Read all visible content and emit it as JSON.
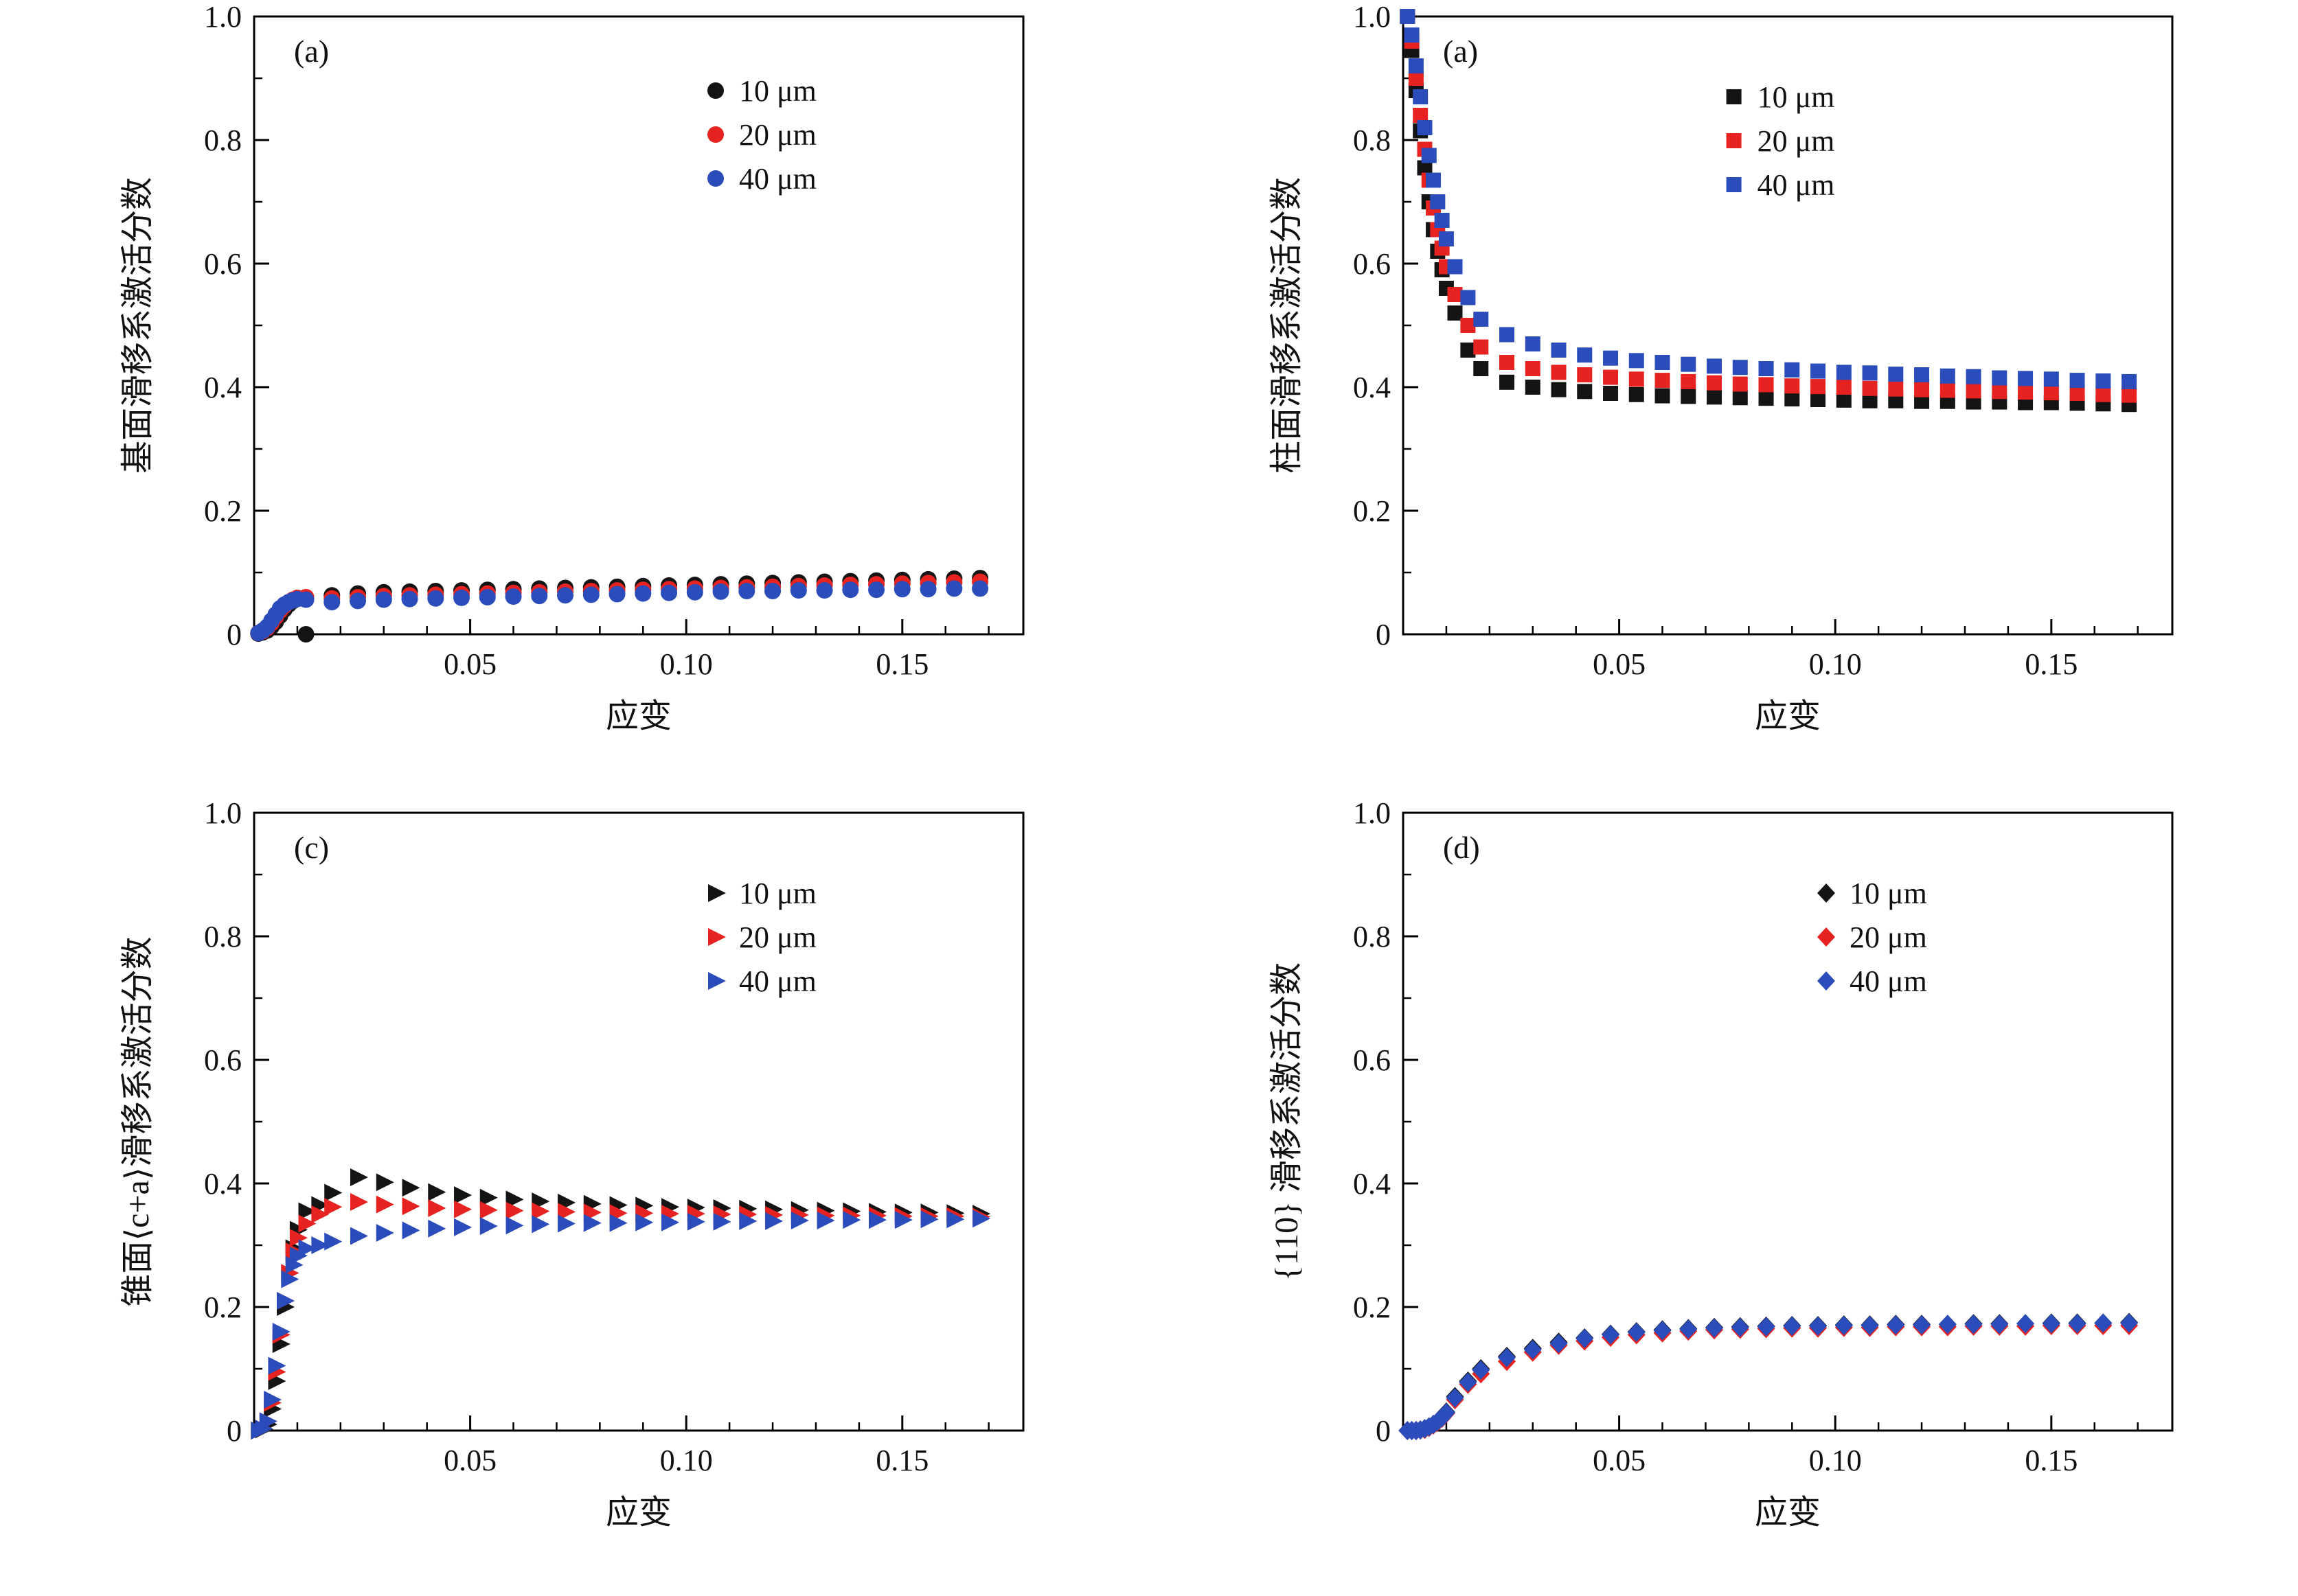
{
  "page": {
    "background": "#ffffff"
  },
  "chart_data": [
    {
      "type": "scatter",
      "panel_label": "(a)",
      "marker": "circle",
      "xlabel": "应变",
      "ylabel": "基面滑移系激活分数",
      "xlim": [
        0,
        0.178
      ],
      "ylim": [
        0,
        1.0
      ],
      "xticks": [
        0.05,
        0.1,
        0.15
      ],
      "xtick_labels": [
        "0.05",
        "0.10",
        "0.15"
      ],
      "yticks": [
        0,
        0.2,
        0.4,
        0.6,
        0.8,
        1.0
      ],
      "ytick_labels": [
        "0",
        "0.2",
        "0.4",
        "0.6",
        "0.8",
        "1.0"
      ],
      "xminor_step": 0.01,
      "yminor_step": 0.1,
      "grid": false,
      "legend_pos": [
        0.6,
        0.12
      ],
      "x": [
        0.001,
        0.002,
        0.003,
        0.004,
        0.005,
        0.006,
        0.007,
        0.008,
        0.009,
        0.01,
        0.012,
        0.018,
        0.024,
        0.03,
        0.036,
        0.042,
        0.048,
        0.054,
        0.06,
        0.066,
        0.072,
        0.078,
        0.084,
        0.09,
        0.096,
        0.102,
        0.108,
        0.114,
        0.12,
        0.126,
        0.132,
        0.138,
        0.144,
        0.15,
        0.156,
        0.162,
        0.168
      ],
      "series": [
        {
          "name": "10 μm",
          "color": "#141414",
          "values": [
            0.001,
            0.003,
            0.006,
            0.012,
            0.02,
            0.03,
            0.04,
            0.048,
            0.054,
            0.058,
            0.0,
            0.063,
            0.066,
            0.068,
            0.069,
            0.07,
            0.071,
            0.072,
            0.073,
            0.074,
            0.075,
            0.076,
            0.077,
            0.078,
            0.079,
            0.08,
            0.081,
            0.082,
            0.083,
            0.084,
            0.085,
            0.086,
            0.087,
            0.088,
            0.089,
            0.09,
            0.091
          ]
        },
        {
          "name": "20 μm",
          "color": "#e62320",
          "values": [
            0.002,
            0.005,
            0.01,
            0.018,
            0.028,
            0.038,
            0.046,
            0.052,
            0.056,
            0.059,
            0.06,
            0.058,
            0.06,
            0.062,
            0.063,
            0.064,
            0.065,
            0.066,
            0.067,
            0.068,
            0.069,
            0.07,
            0.071,
            0.072,
            0.073,
            0.074,
            0.075,
            0.076,
            0.077,
            0.078,
            0.079,
            0.08,
            0.081,
            0.082,
            0.083,
            0.084,
            0.085
          ]
        },
        {
          "name": "40 μm",
          "color": "#2b4cbb",
          "values": [
            0.002,
            0.006,
            0.012,
            0.022,
            0.032,
            0.042,
            0.048,
            0.052,
            0.055,
            0.057,
            0.056,
            0.052,
            0.054,
            0.056,
            0.057,
            0.058,
            0.059,
            0.06,
            0.061,
            0.062,
            0.063,
            0.064,
            0.065,
            0.066,
            0.067,
            0.068,
            0.069,
            0.07,
            0.07,
            0.071,
            0.071,
            0.072,
            0.072,
            0.073,
            0.073,
            0.074,
            0.074
          ]
        }
      ]
    },
    {
      "type": "scatter",
      "panel_label": "(a)",
      "marker": "square",
      "xlabel": "应变",
      "ylabel": "柱面滑移系激活分数",
      "xlim": [
        0,
        0.178
      ],
      "ylim": [
        0,
        1.0
      ],
      "xticks": [
        0.05,
        0.1,
        0.15
      ],
      "xtick_labels": [
        "0.05",
        "0.10",
        "0.15"
      ],
      "yticks": [
        0,
        0.2,
        0.4,
        0.6,
        0.8,
        1.0
      ],
      "ytick_labels": [
        "0",
        "0.2",
        "0.4",
        "0.6",
        "0.8",
        "1.0"
      ],
      "xminor_step": 0.01,
      "yminor_step": 0.1,
      "grid": false,
      "legend_pos": [
        0.43,
        0.13
      ],
      "x": [
        0.001,
        0.002,
        0.003,
        0.004,
        0.005,
        0.006,
        0.007,
        0.008,
        0.009,
        0.01,
        0.012,
        0.015,
        0.018,
        0.024,
        0.03,
        0.036,
        0.042,
        0.048,
        0.054,
        0.06,
        0.066,
        0.072,
        0.078,
        0.084,
        0.09,
        0.096,
        0.102,
        0.108,
        0.114,
        0.12,
        0.126,
        0.132,
        0.138,
        0.144,
        0.15,
        0.156,
        0.162,
        0.168
      ],
      "series": [
        {
          "name": "10 μm",
          "color": "#141414",
          "values": [
            1.0,
            0.945,
            0.88,
            0.815,
            0.755,
            0.7,
            0.655,
            0.62,
            0.59,
            0.56,
            0.52,
            0.46,
            0.43,
            0.408,
            0.4,
            0.396,
            0.393,
            0.39,
            0.388,
            0.386,
            0.385,
            0.384,
            0.383,
            0.382,
            0.381,
            0.38,
            0.379,
            0.378,
            0.378,
            0.377,
            0.377,
            0.376,
            0.376,
            0.375,
            0.375,
            0.374,
            0.373,
            0.372
          ]
        },
        {
          "name": "20 μm",
          "color": "#e62320",
          "values": [
            1.0,
            0.96,
            0.9,
            0.84,
            0.785,
            0.735,
            0.69,
            0.655,
            0.625,
            0.595,
            0.55,
            0.5,
            0.465,
            0.44,
            0.43,
            0.424,
            0.42,
            0.416,
            0.413,
            0.411,
            0.409,
            0.407,
            0.405,
            0.404,
            0.402,
            0.401,
            0.4,
            0.398,
            0.397,
            0.396,
            0.395,
            0.394,
            0.393,
            0.392,
            0.391,
            0.39,
            0.388,
            0.387
          ]
        },
        {
          "name": "40 μm",
          "color": "#2b4cbb",
          "values": [
            1.0,
            0.97,
            0.92,
            0.87,
            0.82,
            0.775,
            0.735,
            0.7,
            0.67,
            0.64,
            0.595,
            0.545,
            0.51,
            0.485,
            0.47,
            0.46,
            0.452,
            0.447,
            0.443,
            0.44,
            0.437,
            0.434,
            0.432,
            0.43,
            0.428,
            0.426,
            0.424,
            0.423,
            0.421,
            0.42,
            0.418,
            0.417,
            0.415,
            0.414,
            0.413,
            0.411,
            0.41,
            0.409
          ]
        }
      ]
    },
    {
      "type": "scatter",
      "panel_label": "(c)",
      "marker": "triangle-right",
      "xlabel": "应变",
      "ylabel": "锥面⟨c+a⟩滑移系激活分数",
      "xlim": [
        0,
        0.178
      ],
      "ylim": [
        0,
        1.0
      ],
      "xticks": [
        0.05,
        0.1,
        0.15
      ],
      "xtick_labels": [
        "0.05",
        "0.10",
        "0.15"
      ],
      "yticks": [
        0,
        0.2,
        0.4,
        0.6,
        0.8,
        1.0
      ],
      "ytick_labels": [
        "0",
        "0.2",
        "0.4",
        "0.6",
        "0.8",
        "1.0"
      ],
      "xminor_step": 0.01,
      "yminor_step": 0.1,
      "grid": false,
      "legend_pos": [
        0.6,
        0.13
      ],
      "x": [
        0.001,
        0.002,
        0.003,
        0.004,
        0.005,
        0.006,
        0.007,
        0.008,
        0.009,
        0.01,
        0.012,
        0.015,
        0.018,
        0.024,
        0.03,
        0.036,
        0.042,
        0.048,
        0.054,
        0.06,
        0.066,
        0.072,
        0.078,
        0.084,
        0.09,
        0.096,
        0.102,
        0.108,
        0.114,
        0.12,
        0.126,
        0.132,
        0.138,
        0.144,
        0.15,
        0.156,
        0.162,
        0.168
      ],
      "series": [
        {
          "name": "10 μm",
          "color": "#141414",
          "values": [
            0.0,
            0.002,
            0.01,
            0.035,
            0.08,
            0.14,
            0.2,
            0.255,
            0.295,
            0.325,
            0.355,
            0.365,
            0.385,
            0.41,
            0.402,
            0.393,
            0.386,
            0.381,
            0.377,
            0.374,
            0.371,
            0.369,
            0.367,
            0.365,
            0.364,
            0.362,
            0.361,
            0.36,
            0.359,
            0.358,
            0.357,
            0.356,
            0.355,
            0.354,
            0.353,
            0.353,
            0.352,
            0.351
          ]
        },
        {
          "name": "20 μm",
          "color": "#e62320",
          "values": [
            0.0,
            0.003,
            0.015,
            0.045,
            0.095,
            0.155,
            0.21,
            0.255,
            0.29,
            0.312,
            0.335,
            0.35,
            0.362,
            0.37,
            0.366,
            0.363,
            0.36,
            0.358,
            0.357,
            0.356,
            0.355,
            0.354,
            0.353,
            0.352,
            0.352,
            0.351,
            0.351,
            0.35,
            0.35,
            0.349,
            0.349,
            0.348,
            0.348,
            0.348,
            0.347,
            0.347,
            0.347,
            0.346
          ]
        },
        {
          "name": "40 μm",
          "color": "#2b4cbb",
          "values": [
            0.0,
            0.003,
            0.015,
            0.05,
            0.105,
            0.16,
            0.21,
            0.245,
            0.268,
            0.283,
            0.295,
            0.3,
            0.306,
            0.315,
            0.32,
            0.324,
            0.327,
            0.329,
            0.331,
            0.332,
            0.334,
            0.335,
            0.336,
            0.336,
            0.337,
            0.337,
            0.338,
            0.338,
            0.339,
            0.339,
            0.34,
            0.34,
            0.341,
            0.341,
            0.341,
            0.342,
            0.342,
            0.343
          ]
        }
      ]
    },
    {
      "type": "scatter",
      "panel_label": "(d)",
      "marker": "diamond",
      "xlabel": "应变",
      "ylabel": "{110} 滑移系激活分数",
      "xlim": [
        0,
        0.178
      ],
      "ylim": [
        0,
        1.0
      ],
      "xticks": [
        0.05,
        0.1,
        0.15
      ],
      "xtick_labels": [
        "0.05",
        "0.10",
        "0.15"
      ],
      "yticks": [
        0,
        0.2,
        0.4,
        0.6,
        0.8,
        1.0
      ],
      "ytick_labels": [
        "0",
        "0.2",
        "0.4",
        "0.6",
        "0.8",
        "1.0"
      ],
      "xminor_step": 0.01,
      "yminor_step": 0.1,
      "grid": false,
      "legend_pos": [
        0.55,
        0.13
      ],
      "x": [
        0.001,
        0.002,
        0.003,
        0.004,
        0.005,
        0.006,
        0.007,
        0.008,
        0.009,
        0.01,
        0.012,
        0.015,
        0.018,
        0.024,
        0.03,
        0.036,
        0.042,
        0.048,
        0.054,
        0.06,
        0.066,
        0.072,
        0.078,
        0.084,
        0.09,
        0.096,
        0.102,
        0.108,
        0.114,
        0.12,
        0.126,
        0.132,
        0.138,
        0.144,
        0.15,
        0.156,
        0.162,
        0.168
      ],
      "series": [
        {
          "name": "10 μm",
          "color": "#141414",
          "values": [
            0.0,
            0.0,
            0.0,
            0.001,
            0.003,
            0.006,
            0.01,
            0.015,
            0.022,
            0.03,
            0.055,
            0.08,
            0.1,
            0.12,
            0.133,
            0.143,
            0.15,
            0.156,
            0.16,
            0.163,
            0.165,
            0.167,
            0.168,
            0.169,
            0.17,
            0.17,
            0.171,
            0.171,
            0.172,
            0.172,
            0.172,
            0.173,
            0.173,
            0.173,
            0.174,
            0.174,
            0.174,
            0.175
          ]
        },
        {
          "name": "20 μm",
          "color": "#e62320",
          "values": [
            0.0,
            0.0,
            0.0,
            0.001,
            0.002,
            0.005,
            0.009,
            0.014,
            0.02,
            0.028,
            0.05,
            0.075,
            0.092,
            0.112,
            0.127,
            0.138,
            0.145,
            0.151,
            0.155,
            0.158,
            0.161,
            0.163,
            0.164,
            0.165,
            0.166,
            0.166,
            0.167,
            0.167,
            0.168,
            0.168,
            0.168,
            0.169,
            0.169,
            0.169,
            0.17,
            0.17,
            0.17,
            0.17
          ]
        },
        {
          "name": "40 μm",
          "color": "#2b4cbb",
          "values": [
            0.0,
            0.0,
            0.0,
            0.001,
            0.003,
            0.006,
            0.01,
            0.015,
            0.021,
            0.029,
            0.053,
            0.078,
            0.098,
            0.118,
            0.131,
            0.141,
            0.149,
            0.155,
            0.159,
            0.162,
            0.164,
            0.166,
            0.167,
            0.168,
            0.169,
            0.169,
            0.17,
            0.17,
            0.171,
            0.171,
            0.172,
            0.172,
            0.172,
            0.173,
            0.173,
            0.173,
            0.174,
            0.174
          ]
        }
      ]
    }
  ]
}
